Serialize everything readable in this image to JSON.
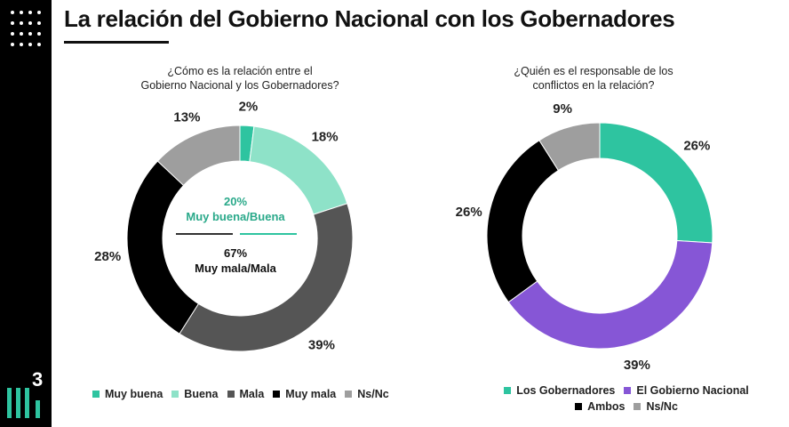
{
  "title": "La relación del Gobierno Nacional con los Gobernadores",
  "brand_number": "3",
  "colors": {
    "muy_buena": "#2ec4a0",
    "buena": "#8ee2c8",
    "mala": "#555555",
    "muy_mala": "#000000",
    "nsnc": "#9e9e9e",
    "los_gobernadores": "#2ec4a0",
    "gobierno_nacional": "#8656d6",
    "ambos": "#000000",
    "center_green": "#2aa98a"
  },
  "chart_data": [
    {
      "type": "pie",
      "donut": true,
      "title": "¿Cómo es la relación entre el\nGobierno Nacional y los Gobernadores?",
      "categories": [
        "Muy buena",
        "Buena",
        "Mala",
        "Muy mala",
        "Ns/Nc"
      ],
      "values": [
        2,
        18,
        39,
        28,
        13
      ],
      "data_labels": [
        "2%",
        "18%",
        "39%",
        "28%",
        "13%"
      ],
      "colors": [
        "#2ec4a0",
        "#8ee2c8",
        "#555555",
        "#000000",
        "#9e9e9e"
      ],
      "center": {
        "top_value": "20%",
        "top_label": "Muy buena/Buena",
        "bottom_value": "67%",
        "bottom_label": "Muy mala/Mala"
      },
      "legend_position": "bottom"
    },
    {
      "type": "pie",
      "donut": true,
      "title": "¿Quién es el responsable de los\nconflictos en la relación?",
      "categories": [
        "Los Gobernadores",
        "El Gobierno Nacional",
        "Ambos",
        "Ns/Nc"
      ],
      "values": [
        26,
        39,
        26,
        9
      ],
      "data_labels": [
        "26%",
        "39%",
        "26%",
        "9%"
      ],
      "colors": [
        "#2ec4a0",
        "#8656d6",
        "#000000",
        "#9e9e9e"
      ],
      "legend_position": "bottom"
    }
  ]
}
